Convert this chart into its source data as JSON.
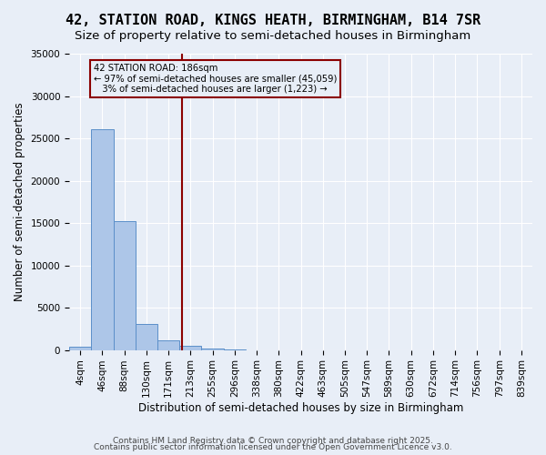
{
  "title": "42, STATION ROAD, KINGS HEATH, BIRMINGHAM, B14 7SR",
  "subtitle": "Size of property relative to semi-detached houses in Birmingham",
  "xlabel": "Distribution of semi-detached houses by size in Birmingham",
  "ylabel": "Number of semi-detached properties",
  "footer1": "Contains HM Land Registry data © Crown copyright and database right 2025.",
  "footer2": "Contains public sector information licensed under the Open Government Licence v3.0.",
  "bin_labels": [
    "4sqm",
    "46sqm",
    "88sqm",
    "130sqm",
    "171sqm",
    "213sqm",
    "255sqm",
    "296sqm",
    "338sqm",
    "380sqm",
    "422sqm",
    "463sqm",
    "505sqm",
    "547sqm",
    "589sqm",
    "630sqm",
    "672sqm",
    "714sqm",
    "756sqm",
    "797sqm",
    "839sqm"
  ],
  "bar_values": [
    350,
    26100,
    15200,
    3100,
    1100,
    450,
    200,
    50,
    0,
    0,
    0,
    0,
    0,
    0,
    0,
    0,
    0,
    0,
    0,
    0,
    0
  ],
  "bar_color": "#adc6e8",
  "bar_edge_color": "#5b8fc9",
  "bg_color": "#e8eef7",
  "grid_color": "#ffffff",
  "vline_x": 4.6,
  "vline_color": "#8b0000",
  "annotation_text": "42 STATION ROAD: 186sqm\n← 97% of semi-detached houses are smaller (45,059)\n   3% of semi-detached houses are larger (1,223) →",
  "annotation_box_color": "#8b0000",
  "ylim": [
    0,
    35000
  ],
  "yticks": [
    0,
    5000,
    10000,
    15000,
    20000,
    25000,
    30000,
    35000
  ],
  "title_fontsize": 11,
  "subtitle_fontsize": 9.5,
  "tick_fontsize": 7.5,
  "label_fontsize": 8.5,
  "footer_fontsize": 6.5
}
